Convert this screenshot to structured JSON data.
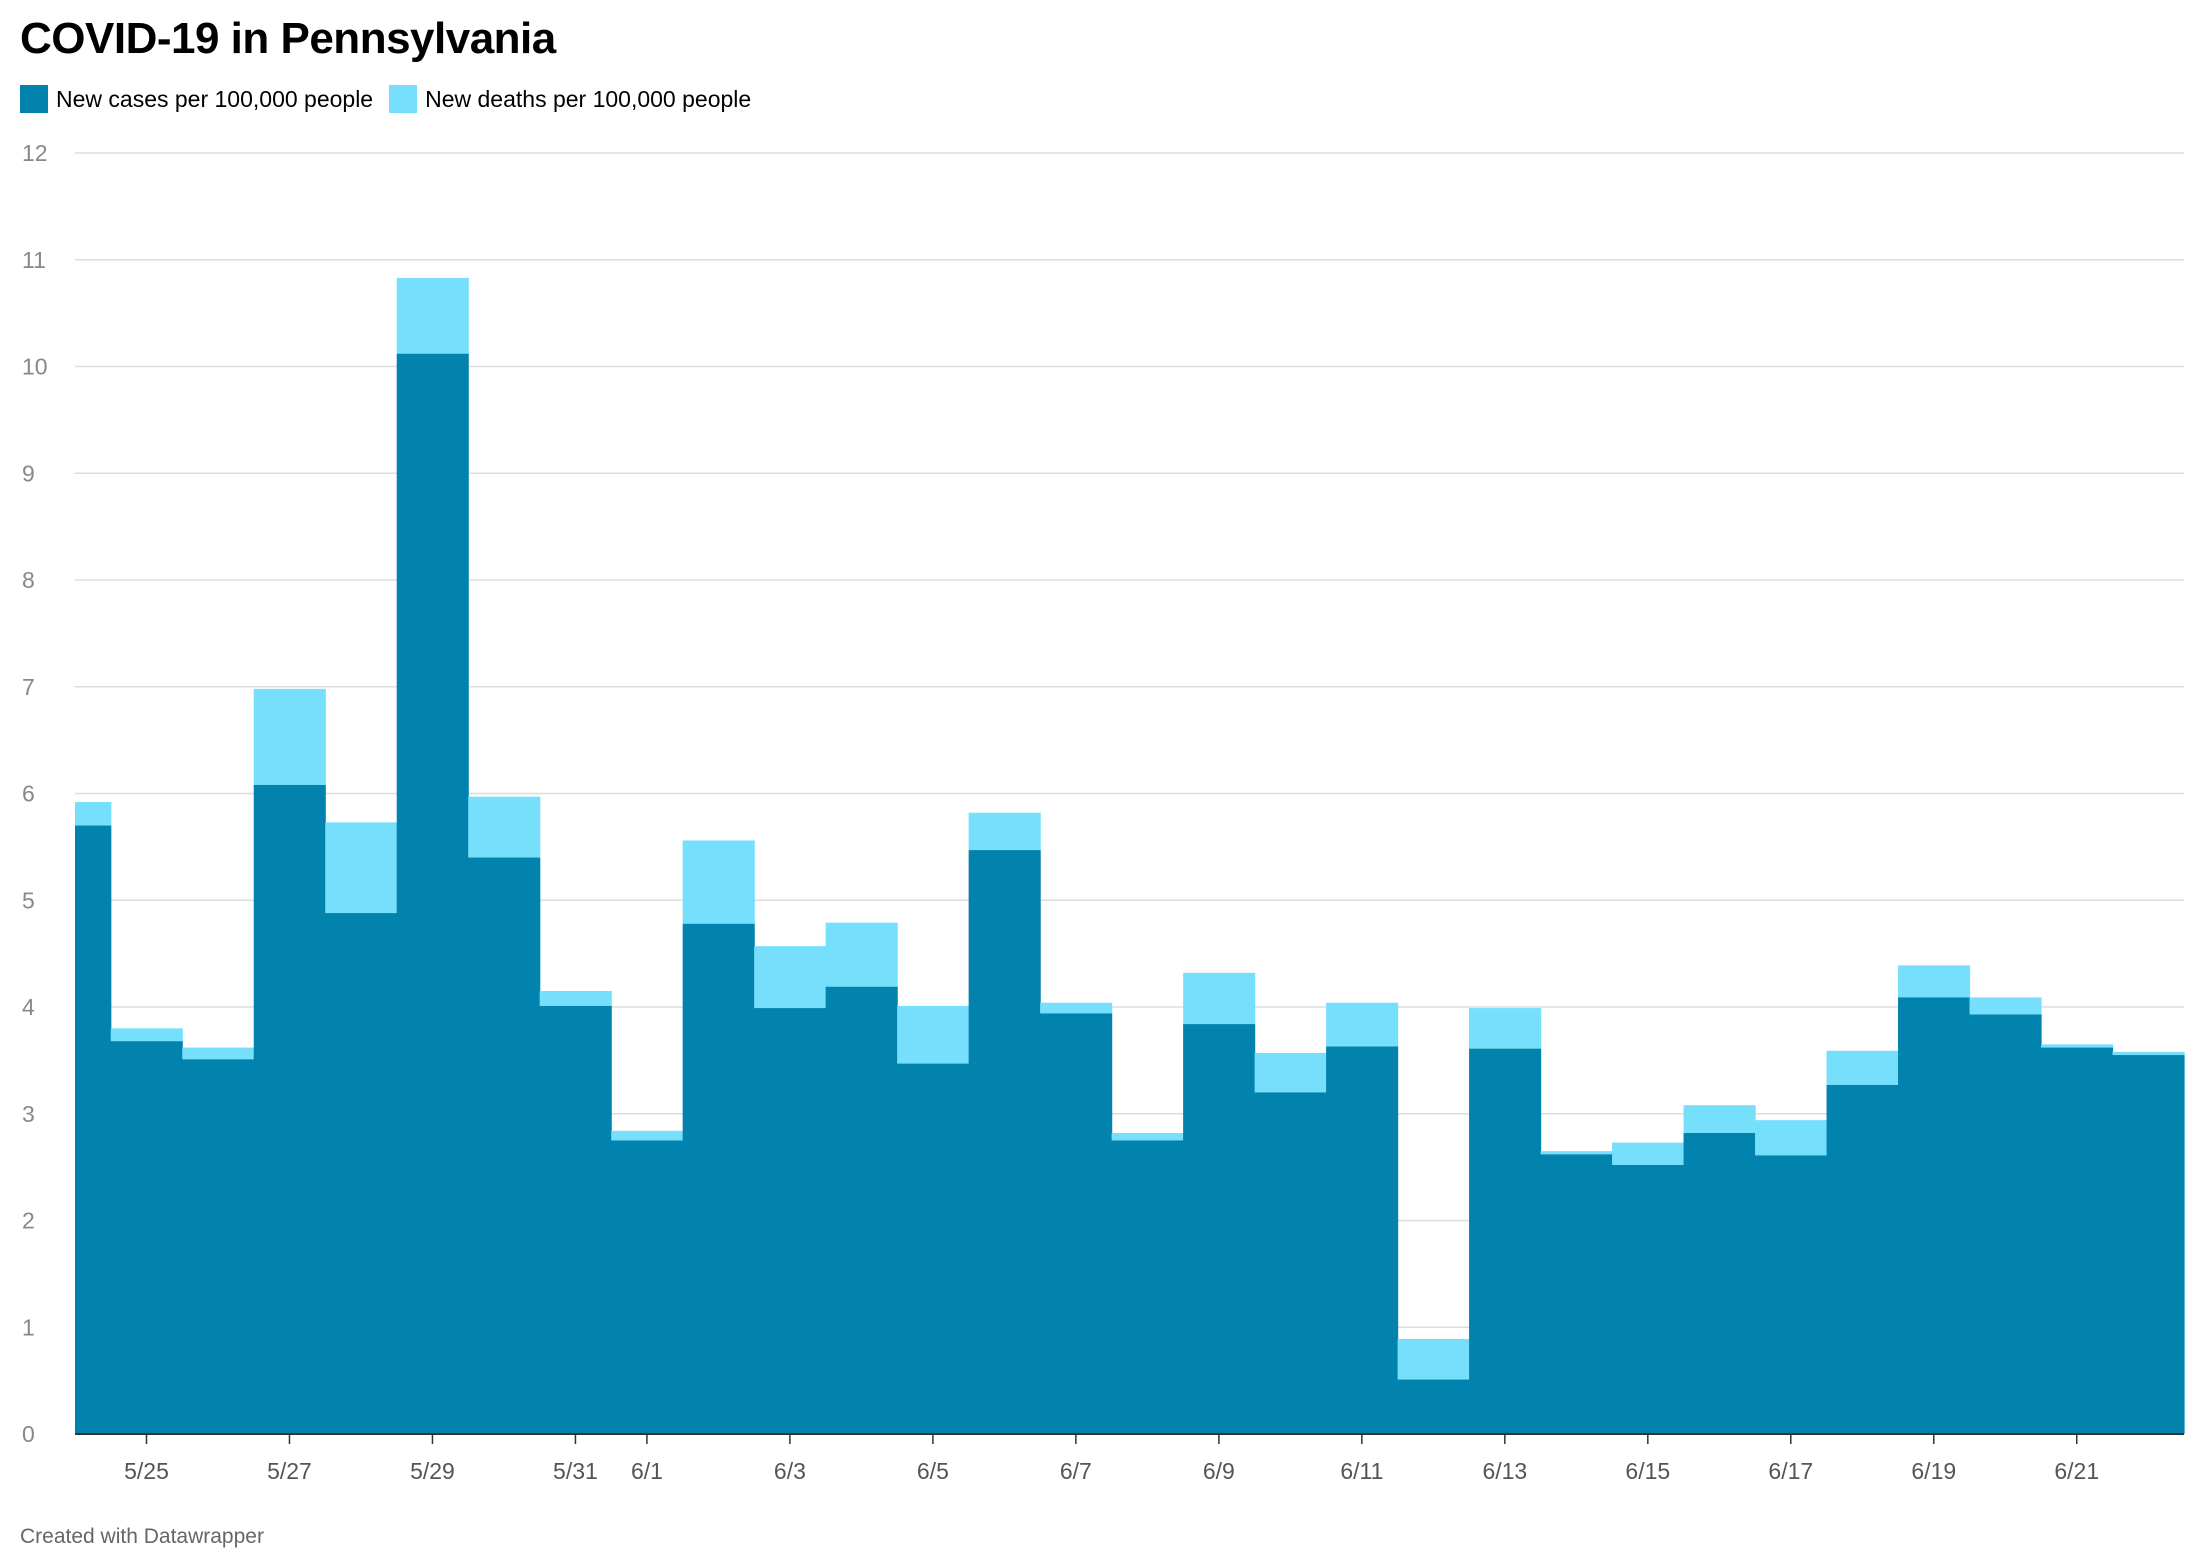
{
  "title": "COVID-19 in Pennsylvania",
  "legend": [
    {
      "label": "New cases per 100,000 people",
      "color": "#0283ae"
    },
    {
      "label": "New deaths per 100,000 people",
      "color": "#76e0fc"
    }
  ],
  "credit": "Created with Datawrapper",
  "chart_data": {
    "type": "area",
    "stacked": true,
    "step": true,
    "title": "COVID-19 in Pennsylvania",
    "xlabel": "",
    "ylabel": "",
    "ylim": [
      0,
      12
    ],
    "yticks": [
      "0",
      "1",
      "2",
      "3",
      "4",
      "5",
      "6",
      "7",
      "8",
      "9",
      "10",
      "11",
      "12"
    ],
    "grid": true,
    "legend_position": "top-left",
    "categories": [
      "5/24",
      "5/25",
      "5/26",
      "5/27",
      "5/28",
      "5/29",
      "5/30",
      "5/31",
      "6/1",
      "6/2",
      "6/3",
      "6/4",
      "6/5",
      "6/6",
      "6/7",
      "6/8",
      "6/9",
      "6/10",
      "6/11",
      "6/12",
      "6/13",
      "6/14",
      "6/15",
      "6/16",
      "6/17",
      "6/18",
      "6/19",
      "6/20",
      "6/21",
      "6/22"
    ],
    "tick_labels": [
      "5/25",
      "5/27",
      "5/29",
      "5/31",
      "6/1",
      "6/3",
      "6/5",
      "6/7",
      "6/9",
      "6/11",
      "6/13",
      "6/15",
      "6/17",
      "6/19",
      "6/21"
    ],
    "series": [
      {
        "name": "New cases per 100,000 people",
        "color": "#0283ae",
        "values": [
          5.7,
          3.68,
          3.51,
          6.08,
          4.88,
          10.12,
          5.4,
          4.01,
          2.75,
          4.78,
          3.99,
          4.19,
          3.47,
          5.47,
          3.94,
          2.75,
          3.84,
          3.2,
          3.63,
          0.51,
          3.61,
          2.62,
          2.52,
          2.82,
          2.61,
          3.27,
          4.09,
          3.93,
          3.62,
          3.55
        ]
      },
      {
        "name": "New deaths per 100,000 people",
        "color": "#76e0fc",
        "values": [
          0.22,
          0.12,
          0.11,
          0.9,
          0.85,
          0.71,
          0.57,
          0.14,
          0.09,
          0.78,
          0.58,
          0.6,
          0.54,
          0.35,
          0.1,
          0.07,
          0.48,
          0.37,
          0.41,
          0.38,
          0.38,
          0.03,
          0.21,
          0.26,
          0.33,
          0.32,
          0.3,
          0.16,
          0.03,
          0.03
        ]
      }
    ]
  }
}
